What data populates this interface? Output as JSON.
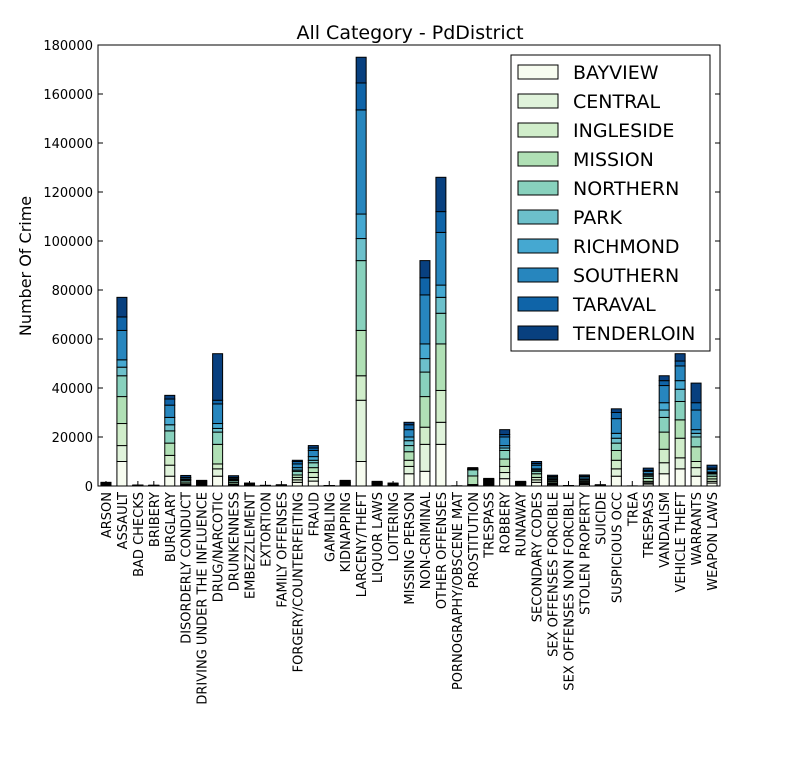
{
  "chart_data": {
    "type": "stacked_bar",
    "title": "All Category - PdDistrict",
    "y_label": "Number Of Crime",
    "categories": [
      "ARSON",
      "ASSAULT",
      "BAD CHECKS",
      "BRIBERY",
      "BURGLARY",
      "DISORDERLY CONDUCT",
      "DRIVING UNDER THE INFLUENCE",
      "DRUG/NARCOTIC",
      "DRUNKENNESS",
      "EMBEZZLEMENT",
      "EXTORTION",
      "FAMILY OFFENSES",
      "FORGERY/COUNTERFEITING",
      "FRAUD",
      "GAMBLING",
      "KIDNAPPING",
      "LARCENY/THEFT",
      "LIQUOR LAWS",
      "LOITERING",
      "MISSING PERSON",
      "NON-CRIMINAL",
      "OTHER OFFENSES",
      "PORNOGRAPHY/OBSCENE MAT",
      "PROSTITUTION",
      "TRESPASS",
      "ROBBERY",
      "RUNAWAY",
      "SECONDARY CODES",
      "SEX OFFENSES FORCIBLE",
      "SEX OFFENSES NON FORCIBLE",
      "STOLEN PROPERTY",
      "SUICIDE",
      "SUSPICIOUS OCC",
      "TREA",
      "TRESPASS",
      "VANDALISM",
      "VEHICLE THEFT",
      "WARRANTS",
      "WEAPON LAWS"
    ],
    "series": [
      {
        "name": "BAYVIEW",
        "color": "#f7fcf0",
        "values": [
          300,
          10000,
          30,
          40,
          4000,
          300,
          300,
          4000,
          200,
          100,
          20,
          40,
          1500,
          2000,
          40,
          300,
          10000,
          100,
          100,
          5000,
          6000,
          17000,
          2,
          100,
          400,
          3000,
          200,
          1500,
          500,
          20,
          600,
          50,
          4000,
          1,
          800,
          5000,
          7000,
          4000,
          1200
        ]
      },
      {
        "name": "CENTRAL",
        "color": "#e0f3db",
        "values": [
          100,
          6500,
          30,
          20,
          4500,
          300,
          200,
          3000,
          300,
          100,
          20,
          40,
          1000,
          1500,
          10,
          200,
          25000,
          100,
          50,
          3000,
          11000,
          9000,
          2,
          200,
          300,
          2500,
          100,
          1000,
          400,
          10,
          400,
          50,
          3000,
          1,
          500,
          4500,
          4500,
          3500,
          700
        ]
      },
      {
        "name": "INGLESIDE",
        "color": "#d0edca",
        "values": [
          200,
          9000,
          40,
          40,
          4000,
          300,
          300,
          2000,
          300,
          100,
          30,
          50,
          1000,
          2000,
          10,
          300,
          10000,
          100,
          50,
          2500,
          7000,
          13000,
          2,
          300,
          300,
          2500,
          300,
          1000,
          400,
          20,
          400,
          50,
          3500,
          1,
          600,
          5500,
          8000,
          2500,
          1000
        ]
      },
      {
        "name": "MISSION",
        "color": "#b0e0b5",
        "values": [
          200,
          11000,
          40,
          30,
          5000,
          700,
          300,
          8000,
          700,
          100,
          30,
          60,
          1000,
          2000,
          20,
          300,
          18500,
          400,
          300,
          3500,
          12500,
          19000,
          2,
          3500,
          400,
          3000,
          300,
          1500,
          600,
          20,
          500,
          50,
          4000,
          1,
          1200,
          7000,
          7500,
          6000,
          1100
        ]
      },
      {
        "name": "NORTHERN",
        "color": "#88d1bd",
        "values": [
          100,
          8500,
          40,
          20,
          5000,
          700,
          200,
          5000,
          700,
          100,
          30,
          50,
          1500,
          2000,
          10,
          200,
          28500,
          300,
          200,
          2500,
          10000,
          12500,
          2,
          2500,
          300,
          3500,
          200,
          1000,
          500,
          10,
          500,
          50,
          3000,
          1,
          900,
          6000,
          7500,
          4000,
          900
        ]
      },
      {
        "name": "PARK",
        "color": "#6cc0cb",
        "values": [
          100,
          3500,
          30,
          20,
          2500,
          200,
          200,
          1500,
          300,
          100,
          20,
          50,
          500,
          1000,
          10,
          100,
          9000,
          100,
          50,
          2000,
          5500,
          6500,
          2,
          100,
          300,
          1000,
          200,
          500,
          300,
          20,
          200,
          60,
          2000,
          1,
          500,
          3000,
          5000,
          1500,
          400
        ]
      },
      {
        "name": "RICHMOND",
        "color": "#45a8d1",
        "values": [
          100,
          3000,
          30,
          20,
          3000,
          200,
          300,
          2000,
          300,
          100,
          20,
          40,
          1000,
          1500,
          5,
          100,
          10000,
          100,
          50,
          1500,
          6000,
          5000,
          2,
          100,
          300,
          1000,
          100,
          500,
          300,
          10,
          300,
          60,
          2000,
          1,
          500,
          3000,
          3500,
          1500,
          400
        ]
      },
      {
        "name": "SOUTHERN",
        "color": "#2786be",
        "values": [
          200,
          12000,
          100,
          40,
          5000,
          600,
          200,
          8000,
          500,
          300,
          40,
          70,
          1500,
          2500,
          20,
          400,
          42500,
          300,
          200,
          3000,
          20000,
          21500,
          2,
          200,
          300,
          3500,
          100,
          1500,
          600,
          20,
          800,
          50,
          6000,
          1,
          1000,
          7000,
          6000,
          8000,
          1100
        ]
      },
      {
        "name": "TARAVAL",
        "color": "#0f64a8",
        "values": [
          100,
          5500,
          30,
          30,
          2500,
          200,
          200,
          1500,
          200,
          100,
          20,
          50,
          1000,
          1000,
          5,
          200,
          11000,
          100,
          50,
          2000,
          7000,
          8500,
          2,
          100,
          300,
          1000,
          300,
          700,
          300,
          10,
          300,
          40,
          2500,
          1,
          400,
          2000,
          2000,
          3000,
          500
        ]
      },
      {
        "name": "TENDERLOIN",
        "color": "#08407f",
        "values": [
          100,
          8000,
          30,
          40,
          1500,
          800,
          100,
          19000,
          700,
          100,
          20,
          50,
          500,
          1000,
          20,
          200,
          10500,
          300,
          150,
          1000,
          7000,
          14000,
          2,
          400,
          200,
          2000,
          100,
          800,
          500,
          10,
          500,
          40,
          1500,
          1,
          900,
          2000,
          3000,
          8000,
          1200
        ]
      }
    ],
    "ylim": [
      0,
      180000
    ],
    "yticks": [
      0,
      20000,
      40000,
      60000,
      80000,
      100000,
      120000,
      140000,
      160000,
      180000
    ],
    "grid": false,
    "legend": "upper right"
  }
}
